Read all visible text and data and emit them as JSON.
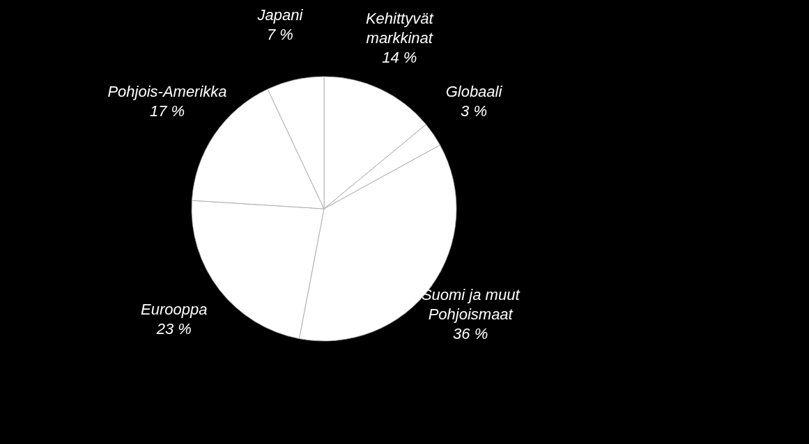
{
  "chart_data": {
    "type": "pie",
    "categories": [
      "Kehittyvät markkinat",
      "Globaali",
      "Suomi ja muut Pohjoismaat",
      "Eurooppa",
      "Pohjois-Amerikka",
      "Japani"
    ],
    "values": [
      14,
      3,
      36,
      23,
      17,
      7
    ],
    "value_labels": [
      "14 %",
      "3 %",
      "36 %",
      "23 %",
      "17 %",
      "7 %"
    ],
    "colors": [
      "#ffffff",
      "#ffffff",
      "#ffffff",
      "#ffffff",
      "#ffffff",
      "#ffffff"
    ],
    "legend": false
  }
}
